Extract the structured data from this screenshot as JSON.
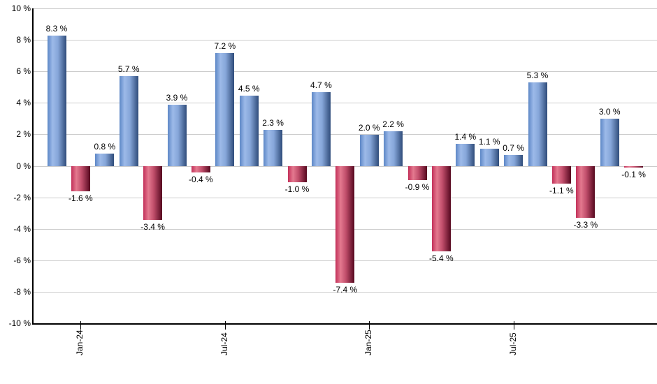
{
  "chart_data": {
    "type": "bar",
    "title": "",
    "xlabel": "",
    "ylabel": "",
    "ylim": [
      -10,
      10
    ],
    "grid": true,
    "legend": null,
    "y_tick_labels": [
      "10 %",
      "8 %",
      "6 %",
      "4 %",
      "2 %",
      "0 %",
      "-2 %",
      "-4 %",
      "-6 %",
      "-8 %",
      "-10 %"
    ],
    "x_ticks": [
      {
        "index": 1,
        "label": "Jan-24"
      },
      {
        "index": 7,
        "label": "Jul-24"
      },
      {
        "index": 13,
        "label": "Jan-25"
      },
      {
        "index": 19,
        "label": "Jul-25"
      }
    ],
    "values": [
      8.3,
      -1.6,
      0.8,
      5.7,
      -3.4,
      3.9,
      -0.4,
      7.2,
      4.5,
      2.3,
      -1.0,
      4.7,
      -7.4,
      2.0,
      2.2,
      -0.9,
      -5.4,
      1.4,
      1.1,
      0.7,
      5.3,
      -1.1,
      -3.3,
      3.0,
      -0.1
    ],
    "value_labels": [
      "8.3 %",
      "-1.6 %",
      "0.8 %",
      "5.7 %",
      "-3.4 %",
      "3.9 %",
      "-0.4 %",
      "7.2 %",
      "4.5 %",
      "2.3 %",
      "-1.0 %",
      "4.7 %",
      "-7.4 %",
      "2.0 %",
      "2.2 %",
      "-0.9 %",
      "-5.4 %",
      "1.4 %",
      "1.1 %",
      "0.7 %",
      "5.3 %",
      "-1.1 %",
      "-3.3 %",
      "3.0 %",
      "-0.1 %"
    ],
    "colors": {
      "positive_gradient": [
        "#5d87c6",
        "#9dbae9",
        "#86a6d9",
        "#2f4c7a"
      ],
      "negative_gradient": [
        "#c23059",
        "#e4798f",
        "#c14e6b",
        "#56081f"
      ],
      "gridline": "#cccccc",
      "axis": "#000000",
      "text": "#000000",
      "background": "#ffffff"
    }
  }
}
